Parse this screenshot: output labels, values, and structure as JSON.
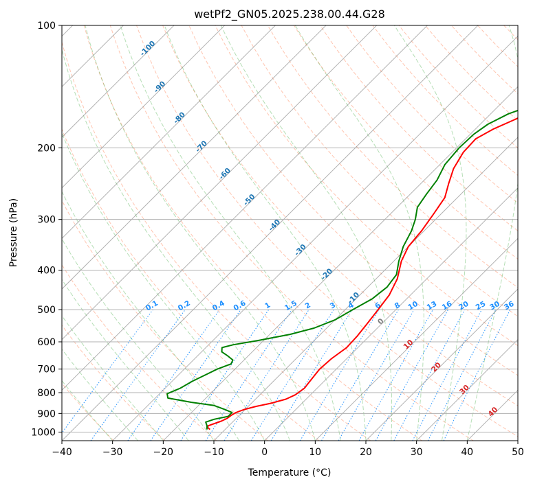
{
  "chart_data": {
    "type": "line",
    "title": "wetPf2_GN05.2025.238.00.44.G28",
    "xlabel": "Temperature (°C)",
    "ylabel": "Pressure (hPa)",
    "xlim": [
      -40,
      50
    ],
    "ylim": [
      1050,
      100
    ],
    "y_scale": "log",
    "grid": true,
    "x_ticks": [
      -40,
      -30,
      -20,
      -10,
      0,
      10,
      20,
      30,
      40,
      50
    ],
    "y_ticks": [
      1000,
      900,
      800,
      700,
      600,
      500,
      400,
      300,
      200,
      100
    ],
    "series": [
      {
        "color": "#ff0000",
        "points": [
          {
            "p": 985,
            "t": -13
          },
          {
            "p": 975,
            "t": -13.8
          },
          {
            "p": 965,
            "t": -14.1
          },
          {
            "p": 940,
            "t": -12.4
          },
          {
            "p": 925,
            "t": -11.8
          },
          {
            "p": 910,
            "t": -11.6
          },
          {
            "p": 895,
            "t": -11.2
          },
          {
            "p": 880,
            "t": -10.2
          },
          {
            "p": 865,
            "t": -8.5
          },
          {
            "p": 850,
            "t": -6.2
          },
          {
            "p": 830,
            "t": -4.0
          },
          {
            "p": 810,
            "t": -3.0
          },
          {
            "p": 780,
            "t": -2.5
          },
          {
            "p": 750,
            "t": -2.8
          },
          {
            "p": 700,
            "t": -3.3
          },
          {
            "p": 660,
            "t": -3.0
          },
          {
            "p": 620,
            "t": -2.2
          },
          {
            "p": 580,
            "t": -2.4
          },
          {
            "p": 540,
            "t": -2.9
          },
          {
            "p": 500,
            "t": -3.5
          },
          {
            "p": 460,
            "t": -4.2
          },
          {
            "p": 420,
            "t": -5.8
          },
          {
            "p": 380,
            "t": -8.5
          },
          {
            "p": 350,
            "t": -10.0
          },
          {
            "p": 320,
            "t": -10.5
          },
          {
            "p": 290,
            "t": -11.5
          },
          {
            "p": 265,
            "t": -12.5
          },
          {
            "p": 245,
            "t": -14.5
          },
          {
            "p": 225,
            "t": -16.5
          },
          {
            "p": 205,
            "t": -17.8
          },
          {
            "p": 190,
            "t": -18.0
          },
          {
            "p": 180,
            "t": -16.5
          },
          {
            "p": 170,
            "t": -14.0
          },
          {
            "p": 160,
            "t": -12.0
          },
          {
            "p": 150,
            "t": -8.0
          },
          {
            "p": 140,
            "t": -4.5
          },
          {
            "p": 130,
            "t": -2.0
          },
          {
            "p": 120,
            "t": -1.0
          },
          {
            "p": 110,
            "t": 0.0
          },
          {
            "p": 100,
            "t": 1.5
          }
        ]
      },
      {
        "color": "#008000",
        "points": [
          {
            "p": 985,
            "t": -13.6
          },
          {
            "p": 965,
            "t": -14.3
          },
          {
            "p": 945,
            "t": -15.3
          },
          {
            "p": 930,
            "t": -14.2
          },
          {
            "p": 915,
            "t": -12.0
          },
          {
            "p": 895,
            "t": -12.0
          },
          {
            "p": 880,
            "t": -14.0
          },
          {
            "p": 860,
            "t": -17.0
          },
          {
            "p": 845,
            "t": -22.0
          },
          {
            "p": 825,
            "t": -27.5
          },
          {
            "p": 805,
            "t": -28.5
          },
          {
            "p": 780,
            "t": -27.0
          },
          {
            "p": 750,
            "t": -26.0
          },
          {
            "p": 720,
            "t": -24.5
          },
          {
            "p": 700,
            "t": -23.5
          },
          {
            "p": 680,
            "t": -21.8
          },
          {
            "p": 665,
            "t": -22.2
          },
          {
            "p": 650,
            "t": -24.0
          },
          {
            "p": 635,
            "t": -26.0
          },
          {
            "p": 620,
            "t": -26.8
          },
          {
            "p": 610,
            "t": -25.2
          },
          {
            "p": 595,
            "t": -21.0
          },
          {
            "p": 575,
            "t": -16.0
          },
          {
            "p": 555,
            "t": -12.5
          },
          {
            "p": 530,
            "t": -10.0
          },
          {
            "p": 500,
            "t": -8.5
          },
          {
            "p": 470,
            "t": -6.8
          },
          {
            "p": 440,
            "t": -6.2
          },
          {
            "p": 410,
            "t": -6.8
          },
          {
            "p": 380,
            "t": -9.0
          },
          {
            "p": 350,
            "t": -11.0
          },
          {
            "p": 320,
            "t": -12.5
          },
          {
            "p": 300,
            "t": -14.0
          },
          {
            "p": 280,
            "t": -16.0
          },
          {
            "p": 260,
            "t": -16.8
          },
          {
            "p": 240,
            "t": -17.5
          },
          {
            "p": 220,
            "t": -19.0
          },
          {
            "p": 200,
            "t": -19.5
          },
          {
            "p": 185,
            "t": -19.3
          },
          {
            "p": 175,
            "t": -18.5
          },
          {
            "p": 165,
            "t": -16.5
          },
          {
            "p": 155,
            "t": -12.5
          },
          {
            "p": 145,
            "t": -7.5
          },
          {
            "p": 135,
            "t": -5.5
          },
          {
            "p": 125,
            "t": -4.5
          },
          {
            "p": 115,
            "t": -3.0
          },
          {
            "p": 100,
            "t": 1.5
          }
        ]
      }
    ],
    "isotherm_labels": {
      "color": "#1f77b4",
      "values": [
        -100,
        -90,
        -80,
        -70,
        -60,
        -50,
        -40,
        -30,
        -20,
        -10,
        0,
        10,
        20,
        30,
        40
      ],
      "colors_by_sign": {
        "negative": "#1f77b4",
        "zero": "#808080",
        "positive": "#d62728"
      }
    },
    "mixing_ratio_labels": {
      "color": "#1e90ff",
      "values": [
        "0.1",
        "0.2",
        "0.4",
        "0.6",
        "1",
        "1.5",
        "2",
        "3",
        "4",
        "6",
        "8",
        "10",
        "13",
        "16",
        "20",
        "25",
        "30",
        "36"
      ],
      "label_pressure": 500
    },
    "background_lines": {
      "skewed_isotherms_color": "#808080",
      "dry_adiabats_color": "#ff7f50",
      "moist_adiabats_color": "#2ca02c",
      "mixing_ratio_color": "#1e90ff"
    }
  }
}
